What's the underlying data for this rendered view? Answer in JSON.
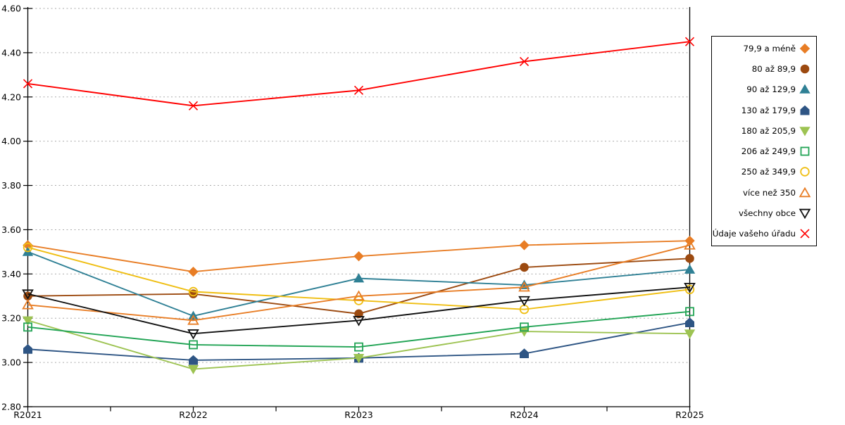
{
  "chart_data": {
    "type": "line",
    "title": "",
    "xlabel": "",
    "ylabel": "",
    "categories": [
      "R2021",
      "R2022",
      "R2023",
      "R2024",
      "R2025"
    ],
    "series": [
      {
        "name": "79,9 a méně",
        "marker": "diamond",
        "fill": "solid",
        "color": "#E87D25",
        "values": [
          3.53,
          3.41,
          3.48,
          3.53,
          3.55
        ]
      },
      {
        "name": "80 až 89,9",
        "marker": "circle",
        "fill": "solid",
        "color": "#9C4A10",
        "values": [
          3.3,
          3.31,
          3.22,
          3.43,
          3.47
        ]
      },
      {
        "name": "90 až 129,9",
        "marker": "triangle-up",
        "fill": "solid",
        "color": "#2F8095",
        "values": [
          3.5,
          3.21,
          3.38,
          3.35,
          3.42
        ]
      },
      {
        "name": "130 až 179,9",
        "marker": "pentagon",
        "fill": "solid",
        "color": "#2E5584",
        "values": [
          3.06,
          3.01,
          3.02,
          3.04,
          3.18
        ]
      },
      {
        "name": "180 až 205,9",
        "marker": "triangle-down",
        "fill": "solid",
        "color": "#9DC352",
        "values": [
          3.19,
          2.97,
          3.02,
          3.14,
          3.13
        ]
      },
      {
        "name": "206 až 249,9",
        "marker": "square",
        "fill": "open",
        "color": "#22A455",
        "values": [
          3.16,
          3.08,
          3.07,
          3.16,
          3.23
        ]
      },
      {
        "name": "250 až 349,9",
        "marker": "circle",
        "fill": "open",
        "color": "#EFBE12",
        "values": [
          3.52,
          3.32,
          3.28,
          3.24,
          3.33
        ]
      },
      {
        "name": "více než 350",
        "marker": "triangle-up",
        "fill": "open",
        "color": "#E87D25",
        "values": [
          3.26,
          3.19,
          3.3,
          3.34,
          3.53
        ]
      },
      {
        "name": "všechny obce",
        "marker": "triangle-down",
        "fill": "open",
        "color": "#111111",
        "values": [
          3.31,
          3.13,
          3.19,
          3.28,
          3.34
        ]
      },
      {
        "name": "Údaje vašeho úřadu",
        "marker": "x",
        "fill": "open",
        "color": "#FF0000",
        "values": [
          4.26,
          4.16,
          4.23,
          4.36,
          4.45
        ]
      }
    ],
    "ylim": [
      2.8,
      4.6
    ],
    "y_tick_step": 0.2,
    "y_tick_labels": [
      "2.80",
      "3.00",
      "3.20",
      "3.40",
      "3.60",
      "3.80",
      "4.00",
      "4.20",
      "4.40",
      "4.60"
    ],
    "grid": "horizontal-dashed",
    "grid_color": "#AAAAAA",
    "axis_color": "#000000",
    "legend_position": "right"
  }
}
